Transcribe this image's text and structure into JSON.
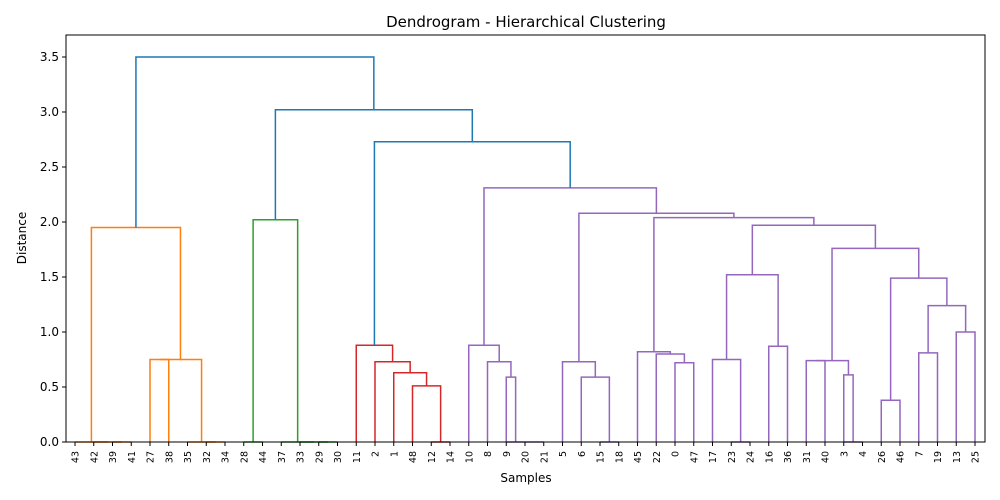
{
  "chart_data": {
    "type": "dendrogram",
    "title": "Dendrogram - Hierarchical Clustering",
    "xlabel": "Samples",
    "ylabel": "Distance",
    "ylim": [
      0,
      3.7
    ],
    "yticks": [
      "0.0",
      "0.5",
      "1.0",
      "1.5",
      "2.0",
      "2.5",
      "3.0",
      "3.5"
    ],
    "leaves": [
      "43",
      "42",
      "39",
      "41",
      "27",
      "38",
      "35",
      "32",
      "34",
      "28",
      "44",
      "37",
      "33",
      "29",
      "30",
      "11",
      "2",
      "1",
      "48",
      "12",
      "14",
      "10",
      "8",
      "9",
      "20",
      "21",
      "5",
      "6",
      "15",
      "18",
      "45",
      "22",
      "0",
      "47",
      "17",
      "23",
      "24",
      "16",
      "36",
      "31",
      "40",
      "3",
      "4",
      "26",
      "46",
      "7",
      "19",
      "13",
      "25"
    ],
    "colors": {
      "orange": "#ff7f0e",
      "green": "#2ca02c",
      "red": "#d62728",
      "purple": "#9467bd",
      "blue": "#1f77b4"
    },
    "links": [
      {
        "l": "L2",
        "r": "L3",
        "h": 0.0,
        "c": "orange"
      },
      {
        "l": "L1",
        "r": "N0",
        "h": 0.0,
        "c": "orange"
      },
      {
        "l": "L0",
        "r": "N1",
        "h": 0.0,
        "c": "orange"
      },
      {
        "l": "L7",
        "r": "L8",
        "h": 0.0,
        "c": "orange"
      },
      {
        "l": "L6",
        "r": "N3",
        "h": 0.0,
        "c": "orange"
      },
      {
        "l": "L4",
        "r": "L5",
        "h": 0.75,
        "c": "orange"
      },
      {
        "l": "N5",
        "r": "N4",
        "h": 0.75,
        "c": "orange"
      },
      {
        "l": "N2",
        "r": "N6",
        "h": 1.95,
        "c": "orange"
      },
      {
        "l": "L9",
        "r": "L10",
        "h": 0.0,
        "c": "green"
      },
      {
        "l": "L13",
        "r": "L14",
        "h": 0.0,
        "c": "green"
      },
      {
        "l": "L12",
        "r": "N9",
        "h": 0.0,
        "c": "green"
      },
      {
        "l": "L11",
        "r": "N10",
        "h": 0.0,
        "c": "green"
      },
      {
        "l": "N8",
        "r": "N11",
        "h": 2.02,
        "c": "green"
      },
      {
        "l": "L19",
        "r": "L20",
        "h": 0.0,
        "c": "red"
      },
      {
        "l": "L18",
        "r": "N13",
        "h": 0.51,
        "c": "red"
      },
      {
        "l": "L17",
        "r": "N14",
        "h": 0.63,
        "c": "red"
      },
      {
        "l": "L16",
        "r": "N15",
        "h": 0.73,
        "c": "red"
      },
      {
        "l": "L15",
        "r": "N16",
        "h": 0.88,
        "c": "red"
      },
      {
        "l": "L23",
        "r": "L24",
        "h": 0.0,
        "c": "purple"
      },
      {
        "l": "L24",
        "r": "L25",
        "h": 0.0,
        "c": "purple"
      },
      {
        "l": "L23",
        "r": "N18",
        "h": 0.59,
        "c": "purple"
      },
      {
        "l": "L22",
        "r": "N20",
        "h": 0.73,
        "c": "purple"
      },
      {
        "l": "L21",
        "r": "N21",
        "h": 0.88,
        "c": "purple"
      },
      {
        "l": "L28",
        "r": "L29",
        "h": 0.0,
        "c": "purple"
      },
      {
        "l": "L27",
        "r": "N23",
        "h": 0.59,
        "c": "purple"
      },
      {
        "l": "L26",
        "r": "N24",
        "h": 0.73,
        "c": "purple"
      },
      {
        "l": "L32",
        "r": "L33",
        "h": 0.72,
        "c": "purple"
      },
      {
        "l": "L31",
        "r": "N26",
        "h": 0.8,
        "c": "purple"
      },
      {
        "l": "L30",
        "r": "N27",
        "h": 0.82,
        "c": "purple"
      },
      {
        "l": "L35",
        "r": "L36",
        "h": 0.0,
        "c": "purple"
      },
      {
        "l": "L34",
        "r": "N29",
        "h": 0.75,
        "c": "purple"
      },
      {
        "l": "L37",
        "r": "L38",
        "h": 0.87,
        "c": "purple"
      },
      {
        "l": "N30",
        "r": "N31",
        "h": 1.52,
        "c": "purple"
      },
      {
        "l": "L41",
        "r": "L42",
        "h": 0.0,
        "c": "purple"
      },
      {
        "l": "L41",
        "r": "N33",
        "h": 0.61,
        "c": "purple"
      },
      {
        "l": "L39",
        "r": "L40",
        "h": 0.74,
        "c": "purple"
      },
      {
        "l": "N35",
        "r": "N34",
        "h": 0.74,
        "c": "purple"
      },
      {
        "l": "L43",
        "r": "L44",
        "h": 0.38,
        "c": "purple"
      },
      {
        "l": "L45",
        "r": "L46",
        "h": 0.81,
        "c": "purple"
      },
      {
        "l": "L47",
        "r": "L48",
        "h": 1.0,
        "c": "purple"
      },
      {
        "l": "N38",
        "r": "N39",
        "h": 1.24,
        "c": "purple"
      },
      {
        "l": "N37",
        "r": "N40",
        "h": 1.49,
        "c": "purple"
      },
      {
        "l": "N36",
        "r": "N41",
        "h": 1.76,
        "c": "purple"
      },
      {
        "l": "N32",
        "r": "N42",
        "h": 1.97,
        "c": "purple"
      },
      {
        "l": "N28",
        "r": "N43",
        "h": 2.04,
        "c": "purple"
      },
      {
        "l": "N25",
        "r": "N44",
        "h": 2.08,
        "c": "purple"
      },
      {
        "l": "N22",
        "r": "N45",
        "h": 2.31,
        "c": "purple"
      },
      {
        "l": "N17",
        "r": "N46",
        "h": 2.73,
        "c": "blue"
      },
      {
        "l": "N12",
        "r": "N47",
        "h": 3.02,
        "c": "blue"
      },
      {
        "l": "N7",
        "r": "N48",
        "h": 3.5,
        "c": "blue"
      }
    ]
  }
}
